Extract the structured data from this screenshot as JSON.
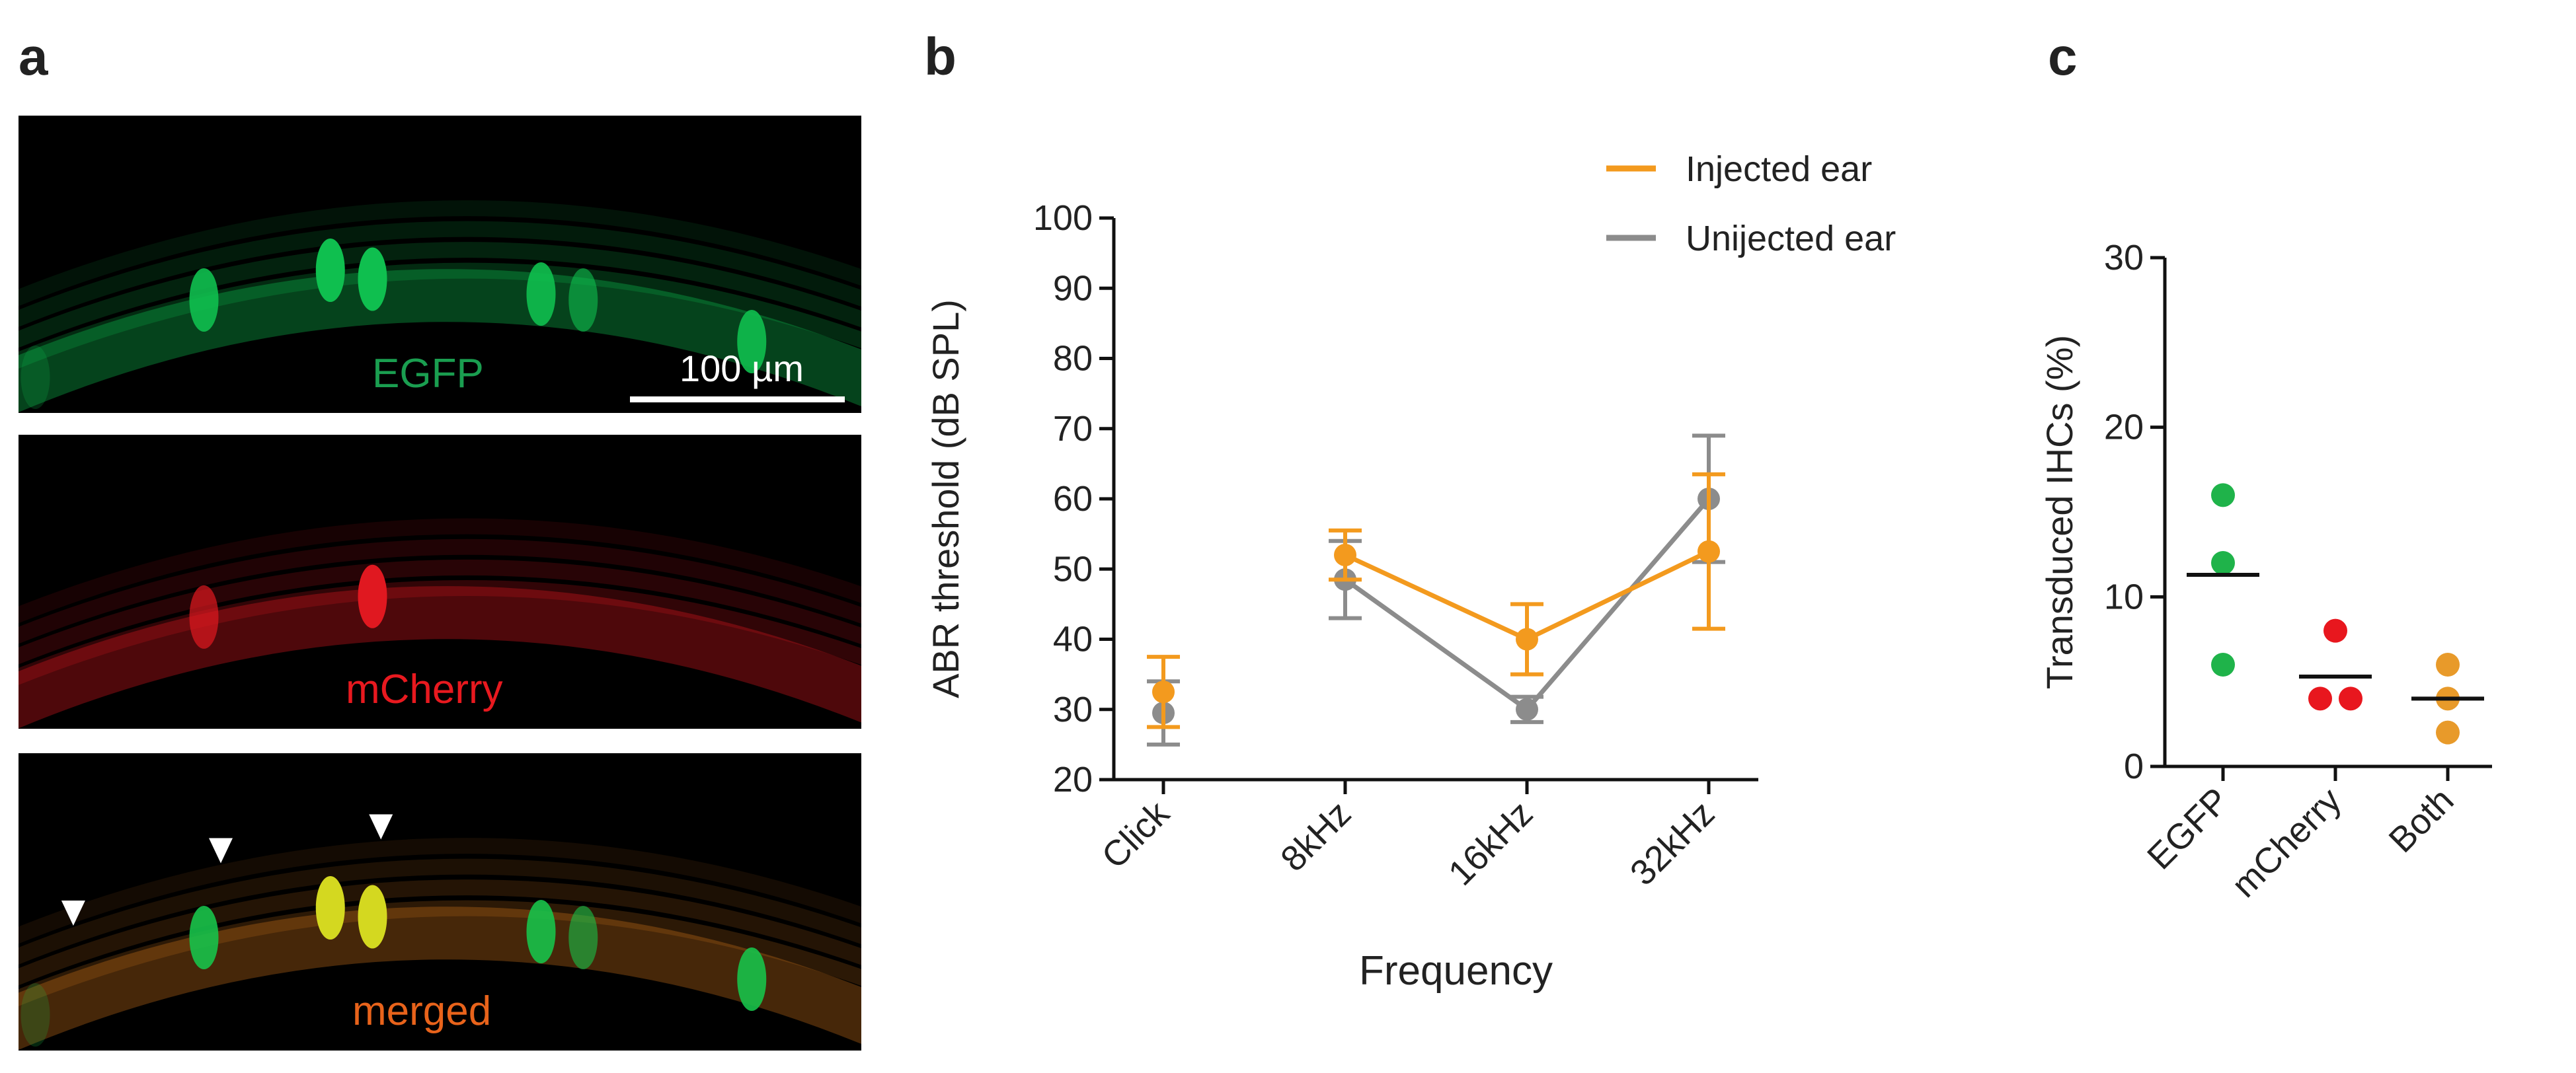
{
  "panels": {
    "a": {
      "letter": "a"
    },
    "b": {
      "letter": "b"
    },
    "c": {
      "letter": "c"
    }
  },
  "micrographs": [
    {
      "label": "EGFP",
      "label_color": "#1a9e50",
      "tint": "#0fbf4f"
    },
    {
      "label": "mCherry",
      "label_color": "#e8191f",
      "tint": "#e01820"
    },
    {
      "label": "merged",
      "label_color": "#e8631b",
      "tint": "#c8701a"
    }
  ],
  "scale_bar": {
    "label": "100 µm"
  },
  "arrowheads": {
    "count": 3,
    "color": "#ffffff"
  },
  "chart_data": [
    {
      "panel": "b",
      "type": "line",
      "title": "",
      "xlabel": "Frequency",
      "ylabel": "ABR threshold (dB SPL)",
      "categories": [
        "Click",
        "8kHz",
        "16kHz",
        "32kHz"
      ],
      "ylim": [
        20,
        100
      ],
      "yticks": [
        "20",
        "30",
        "40",
        "50",
        "60",
        "70",
        "80",
        "90",
        "100"
      ],
      "legend_position": "top-right",
      "series": [
        {
          "name": "Unijected ear",
          "color": "#8c8c8c",
          "values": [
            29.5,
            48.5,
            30,
            60
          ],
          "error": [
            4.5,
            5.5,
            1.8,
            9
          ],
          "connect": [
            false,
            true,
            true,
            true
          ]
        },
        {
          "name": "Injected ear",
          "color": "#f39a1e",
          "values": [
            32.5,
            52,
            40,
            52.5
          ],
          "error": [
            5,
            3.5,
            5,
            11
          ],
          "connect": [
            false,
            true,
            true,
            true
          ]
        }
      ]
    },
    {
      "panel": "c",
      "type": "scatter",
      "title": "",
      "xlabel": "",
      "ylabel": "Transduced IHCs (%)",
      "categories": [
        "EGFP",
        "mCherry",
        "Both"
      ],
      "ylim": [
        0,
        30
      ],
      "yticks": [
        "0",
        "10",
        "20",
        "30"
      ],
      "series": [
        {
          "name": "EGFP",
          "color": "#1fb34a",
          "values": [
            16,
            12,
            6
          ],
          "mean": 11.3
        },
        {
          "name": "mCherry",
          "color": "#e8171e",
          "values": [
            8,
            4,
            4
          ],
          "mean": 5.3
        },
        {
          "name": "Both",
          "color": "#e89a2a",
          "values": [
            6,
            4,
            2
          ],
          "mean": 4.0
        }
      ]
    }
  ]
}
